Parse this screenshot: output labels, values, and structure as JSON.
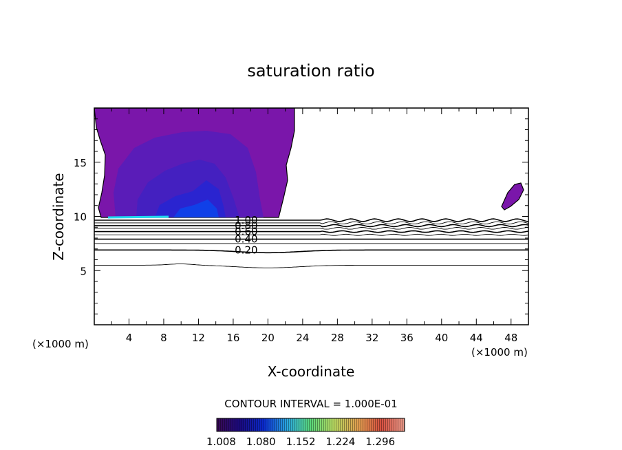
{
  "chart_data": {
    "type": "contour",
    "title": "saturation ratio",
    "xlabel": "X-coordinate",
    "ylabel": "Z-coordinate",
    "x_unit_label": "(×1000 m)",
    "xlim": [
      0,
      50
    ],
    "ylim": [
      0,
      20
    ],
    "x_ticks": [
      4,
      8,
      12,
      16,
      20,
      24,
      28,
      32,
      36,
      40,
      44,
      48
    ],
    "x_tick_labels": [
      "4",
      "8",
      "12",
      "16",
      "20",
      "24",
      "28",
      "32",
      "36",
      "40",
      "44",
      "48"
    ],
    "y_ticks": [
      5,
      10,
      15
    ],
    "y_tick_labels": [
      "5",
      "10",
      "15"
    ],
    "contour_interval_text": "CONTOUR INTERVAL = 1.000E-01",
    "contour_lines": [
      {
        "level": 0.1,
        "z": 5.5
      },
      {
        "level": 0.2,
        "z": 6.9,
        "label": "0.20",
        "label_x": 17.5
      },
      {
        "level": 0.3,
        "z": 7.5
      },
      {
        "level": 0.4,
        "z": 7.9,
        "label": "0.40",
        "label_x": 17.5
      },
      {
        "level": 0.5,
        "z": 8.3
      },
      {
        "level": 0.6,
        "z": 8.6,
        "label": "0.60",
        "label_x": 17.5
      },
      {
        "level": 0.7,
        "z": 8.9
      },
      {
        "level": 0.8,
        "z": 9.15,
        "label": "0.80",
        "label_x": 17.5
      },
      {
        "level": 0.9,
        "z": 9.4
      },
      {
        "level": 1.0,
        "z": 9.65,
        "label": "1.00",
        "label_x": 17.5
      }
    ],
    "shaded_regions": [
      {
        "name": "supersaturated-region-main",
        "x_range": [
          0,
          23.5
        ],
        "z_range": [
          9.8,
          20
        ]
      },
      {
        "name": "supersaturated-region-small",
        "x_range": [
          47,
          49.8
        ],
        "z_range": [
          10.5,
          13
        ]
      }
    ],
    "colorbar": {
      "tick_labels": [
        "1.008",
        "1.080",
        "1.152",
        "1.224",
        "1.296"
      ],
      "range": [
        1.0,
        1.34
      ],
      "colors": [
        "#3a0a55",
        "#1a0a80",
        "#0a2ad0",
        "#2aa8e0",
        "#5ad87a",
        "#b8d860",
        "#e0a050",
        "#d85040",
        "#e89a8a"
      ]
    },
    "colors": {
      "region_base": "#7a16aa",
      "region_mid": "#5a1cb8",
      "region_deep": "#2a24d0",
      "region_core": "#1040e8",
      "ridge": "#20d8ee"
    }
  }
}
